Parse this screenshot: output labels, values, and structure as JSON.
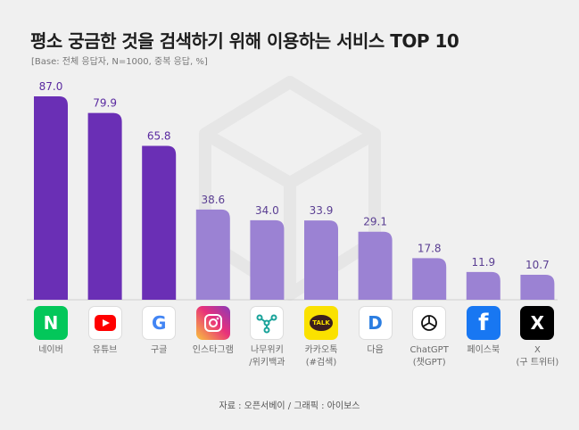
{
  "title": "평소 궁금한 것을 검색하기 위해 이용하는 서비스 TOP 10",
  "subtitle": "[Base: 전체 응답자, N=1000, 중복 응답, %]",
  "source": "자료 : 오픈서베이 / 그래픽 : 아이보스",
  "colors": {
    "top3": "#6a2fb5",
    "rest": "#9b82d3",
    "value_top3": "#5a2aa0",
    "value_rest": "#5a3e92"
  },
  "chart_data": {
    "type": "bar",
    "title": "평소 궁금한 것을 검색하기 위해 이용하는 서비스 TOP 10",
    "categories": [
      "네이버",
      "유튜브",
      "구글",
      "인스타그램",
      "나무위키\n/위키백과",
      "카카오톡\n(#검색)",
      "다음",
      "ChatGPT\n(챗GPT)",
      "페이스북",
      "X\n(구 트위터)"
    ],
    "values": [
      87.0,
      79.9,
      65.8,
      38.6,
      34.0,
      33.9,
      29.1,
      17.8,
      11.9,
      10.7
    ],
    "value_labels": [
      "87.0",
      "79.9",
      "65.8",
      "38.6",
      "34.0",
      "33.9",
      "29.1",
      "17.8",
      "11.9",
      "10.7"
    ],
    "icons": [
      "naver-icon",
      "youtube-icon",
      "google-icon",
      "instagram-icon",
      "namuwiki-icon",
      "kakaotalk-icon",
      "daum-icon",
      "chatgpt-icon",
      "facebook-icon",
      "x-icon"
    ],
    "icon_texts": [
      "N",
      "",
      "G",
      "",
      "",
      "TALK",
      "D",
      "",
      "f",
      "X"
    ],
    "xlabel": "",
    "ylabel": "",
    "ylim": [
      0,
      100
    ],
    "grid": false,
    "legend": "none"
  }
}
